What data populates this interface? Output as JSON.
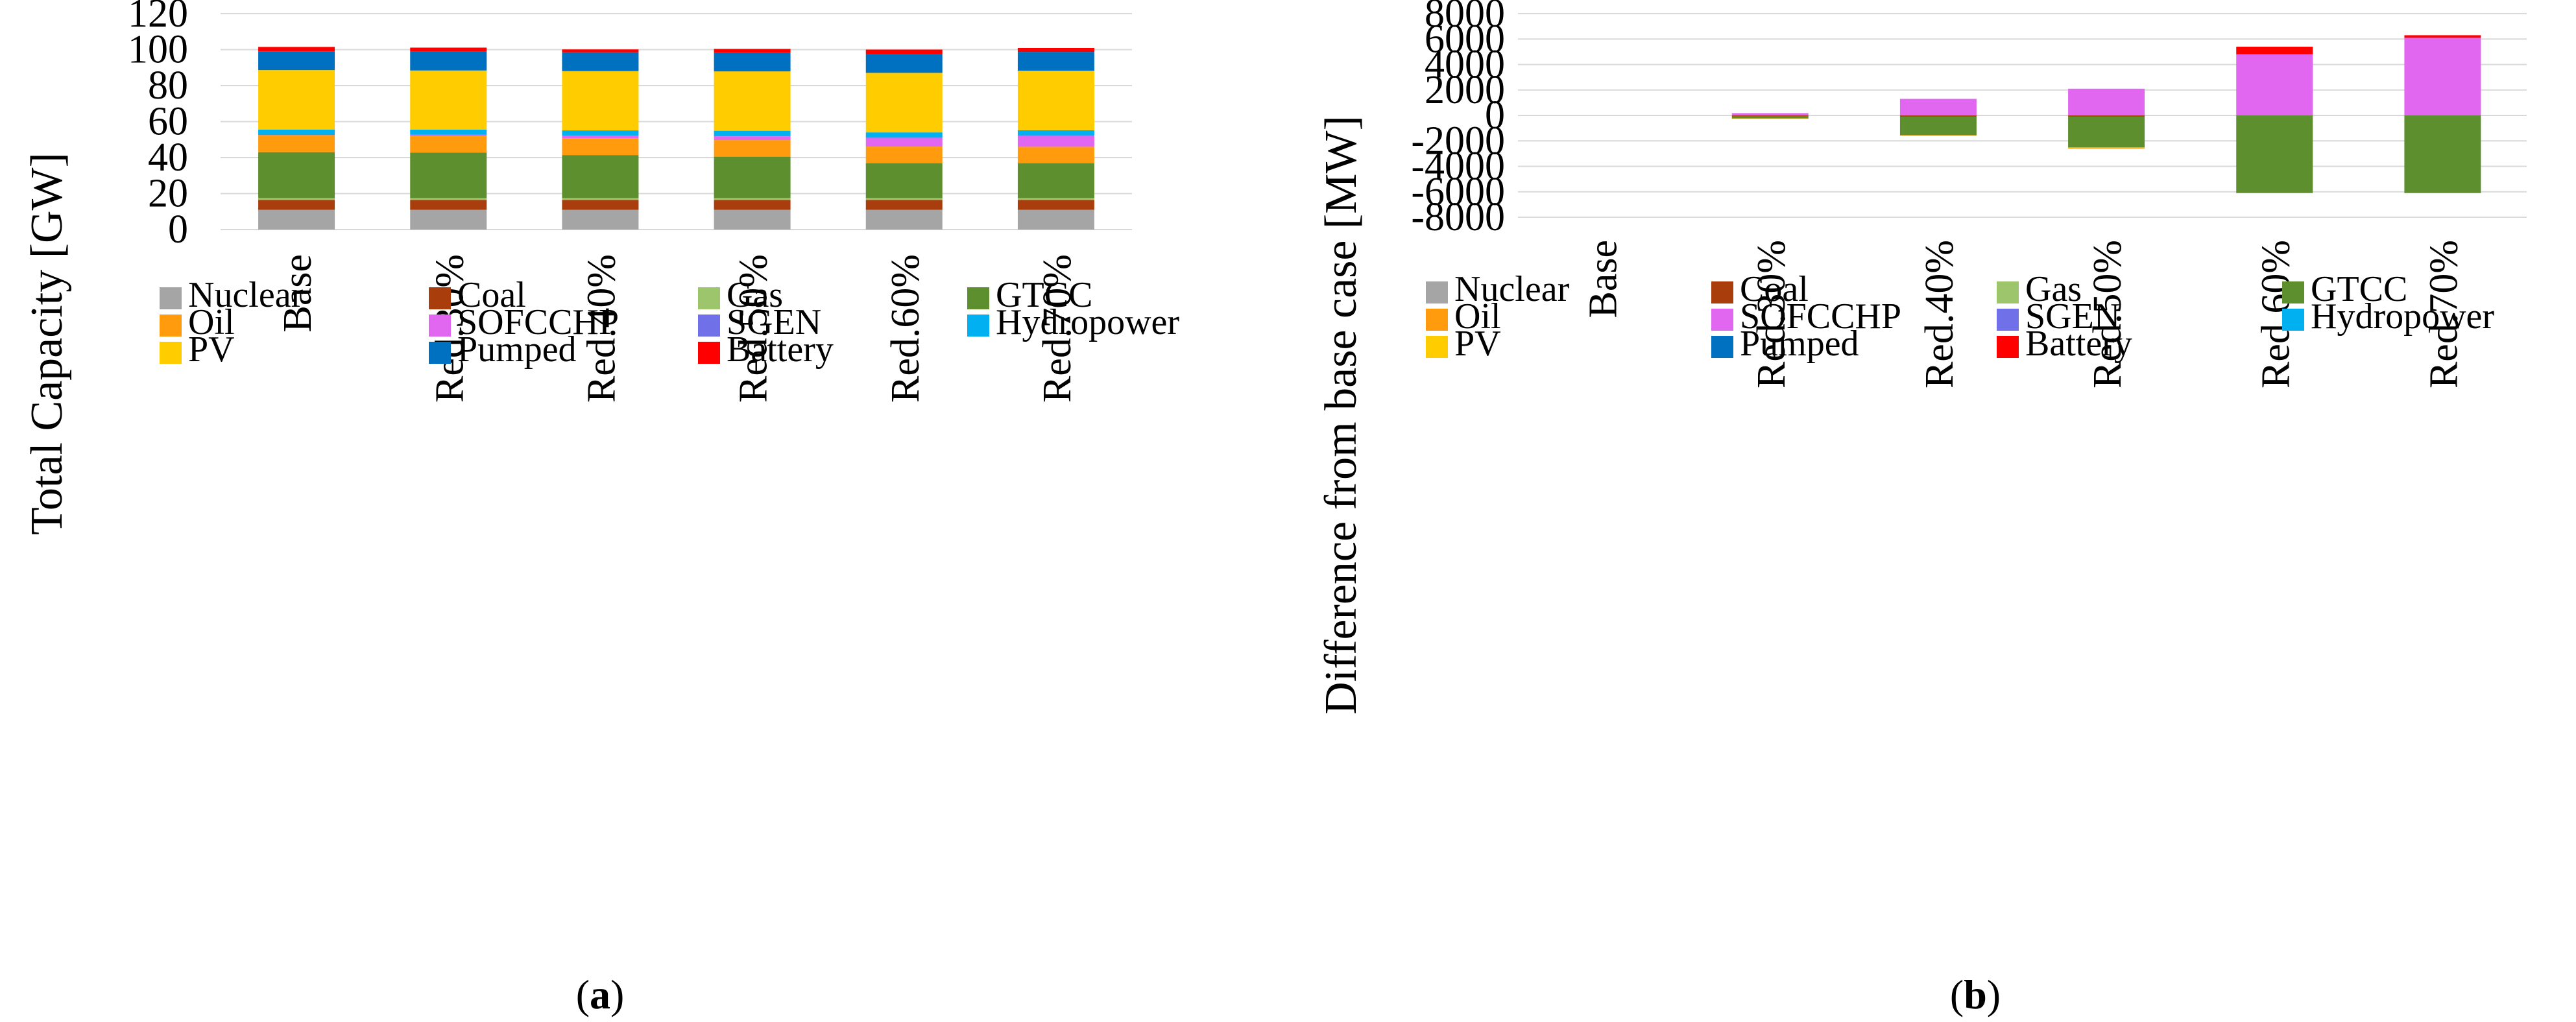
{
  "colors": {
    "Nuclear": "#A5A5A5",
    "Coal": "#A93E0C",
    "Gas": "#9DC56B",
    "GTCC": "#5E8F2E",
    "Oil": "#FF9B0D",
    "SOFCCHP": "#E167F1",
    "SGEN": "#7070E8",
    "Hydropower": "#00B0F0",
    "PV": "#FFCC00",
    "Pumped": "#0070C0",
    "Battery": "#FF0000"
  },
  "chart_data": [
    {
      "panel": "a",
      "type": "bar",
      "stacked": true,
      "ylabel": "Total Capacity [GW]",
      "ylim": [
        0,
        120
      ],
      "yticks": [
        "0",
        "20",
        "40",
        "60",
        "80",
        "100",
        "120"
      ],
      "categories": [
        "Base",
        "Red.30%",
        "Red.40%",
        "Red.50%",
        "Red.60%",
        "Red.70%"
      ],
      "series": [
        {
          "name": "Nuclear",
          "values": [
            11,
            11,
            11,
            11,
            11,
            11
          ]
        },
        {
          "name": "Coal",
          "values": [
            5.5,
            5.5,
            5.5,
            5.5,
            5.5,
            5.5
          ]
        },
        {
          "name": "Gas",
          "values": [
            1,
            1,
            1,
            1,
            1,
            1
          ]
        },
        {
          "name": "GTCC",
          "values": [
            25.5,
            25.3,
            23.9,
            23.0,
            19.4,
            19.4
          ]
        },
        {
          "name": "Oil",
          "values": [
            9.5,
            9.4,
            9.3,
            9.2,
            9.2,
            9.1
          ]
        },
        {
          "name": "SOFCCHP",
          "values": [
            0,
            0.2,
            1.3,
            2.1,
            4.8,
            6.1
          ]
        },
        {
          "name": "SGEN",
          "values": [
            0.3,
            0.3,
            0.3,
            0.3,
            0.3,
            0.3
          ]
        },
        {
          "name": "Hydropower",
          "values": [
            2.8,
            2.8,
            2.8,
            2.8,
            2.8,
            2.8
          ]
        },
        {
          "name": "PV",
          "values": [
            33,
            32.9,
            33.0,
            33.0,
            33.1,
            33.1
          ]
        },
        {
          "name": "Pumped",
          "values": [
            10.4,
            10.4,
            10.4,
            10.4,
            10.4,
            10.4
          ]
        },
        {
          "name": "Battery",
          "values": [
            2.5,
            2.3,
            1.6,
            2.1,
            2.5,
            2.2
          ]
        }
      ],
      "legend_rows": [
        [
          "Nuclear",
          "Coal",
          "Gas",
          "GTCC"
        ],
        [
          "Oil",
          "SOFCCHP",
          "SGEN",
          "Hydropower"
        ],
        [
          "PV",
          "Pumped",
          "Battery"
        ]
      ],
      "panel_label": {
        "open": "(",
        "letter": "a",
        "close": ")"
      }
    },
    {
      "panel": "b",
      "type": "bar",
      "stacked": true,
      "ylabel": "Difference from base case [MW]",
      "ylim": [
        -8000,
        8000
      ],
      "yticks": [
        "-8000",
        "-6000",
        "-4000",
        "-2000",
        "0",
        "2000",
        "4000",
        "6000",
        "8000"
      ],
      "categories": [
        "Base",
        "Red.30%",
        "Red.40%",
        "Red.50%",
        "Red.60%",
        "Red.70%"
      ],
      "series": [
        {
          "name": "Nuclear",
          "values": [
            0,
            0,
            0,
            0,
            0,
            0
          ]
        },
        {
          "name": "Coal",
          "values": [
            0,
            -80,
            -100,
            -100,
            0,
            0
          ]
        },
        {
          "name": "Gas",
          "values": [
            0,
            0,
            0,
            0,
            0,
            0
          ]
        },
        {
          "name": "GTCC",
          "values": [
            0,
            -150,
            -1450,
            -2400,
            -6100,
            -6100
          ]
        },
        {
          "name": "Oil",
          "values": [
            0,
            -30,
            -50,
            -100,
            0,
            0
          ]
        },
        {
          "name": "SOFCCHP",
          "values": [
            0,
            180,
            1300,
            2100,
            4800,
            6100
          ]
        },
        {
          "name": "SGEN",
          "values": [
            0,
            0,
            0,
            0,
            0,
            0
          ]
        },
        {
          "name": "Hydropower",
          "values": [
            0,
            0,
            0,
            0,
            0,
            0
          ]
        },
        {
          "name": "PV",
          "values": [
            0,
            0,
            0,
            0,
            0,
            0
          ]
        },
        {
          "name": "Pumped",
          "values": [
            0,
            0,
            0,
            0,
            0,
            0
          ]
        },
        {
          "name": "Battery",
          "values": [
            0,
            0,
            0,
            0,
            600,
            200
          ]
        }
      ],
      "legend_rows": [
        [
          "Nuclear",
          "Coal",
          "Gas",
          "GTCC"
        ],
        [
          "Oil",
          "SOFCCHP",
          "SGEN",
          "Hydropower"
        ],
        [
          "PV",
          "Pumped",
          "Battery"
        ]
      ],
      "panel_label": {
        "open": "(",
        "letter": "b",
        "close": ")"
      }
    }
  ]
}
